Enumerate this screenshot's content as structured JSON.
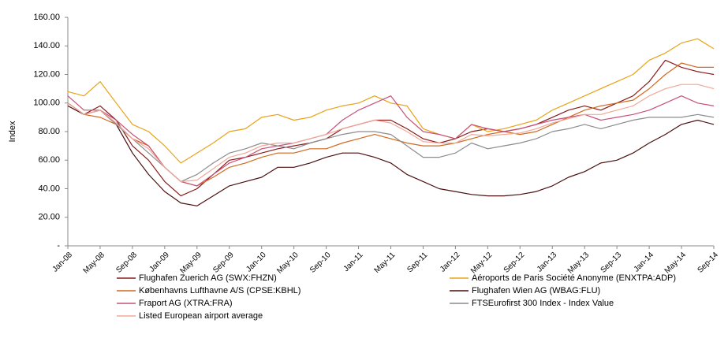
{
  "chart_data": {
    "type": "line",
    "y_label": "Index",
    "categories": [
      "Jan-08",
      null,
      "May-08",
      null,
      "Sep-08",
      null,
      "Jan-09",
      null,
      "May-09",
      null,
      "Sep-09",
      null,
      "Jan-10",
      null,
      "May-10",
      null,
      "Sep-10",
      null,
      "Jan-11",
      null,
      "May-11",
      null,
      "Sep-11",
      null,
      "Jan-12",
      null,
      "May-12",
      null,
      "Sep-12",
      null,
      "Jan-13",
      null,
      "May-13",
      null,
      "Sep-13",
      null,
      "Jan-14",
      null,
      "May-14",
      null,
      "Sep-14"
    ],
    "ylim": [
      0,
      160
    ],
    "yticks": [
      {
        "value": 0,
        "label": "-"
      },
      {
        "value": 20,
        "label": "20.00"
      },
      {
        "value": 40,
        "label": "40.00"
      },
      {
        "value": 60,
        "label": "60.00"
      },
      {
        "value": 80,
        "label": "80.00"
      },
      {
        "value": 100,
        "label": "100.00"
      },
      {
        "value": 120,
        "label": "120.00"
      },
      {
        "value": 140,
        "label": "140.00"
      },
      {
        "value": 160,
        "label": "160.00"
      }
    ],
    "grid": false,
    "legend": "bottom",
    "series": [
      {
        "name": "Flughafen Zuerich AG (SWX:FHZN)",
        "color": "#8b1a1a",
        "values": [
          100,
          92,
          98,
          88,
          70,
          60,
          45,
          35,
          40,
          50,
          60,
          62,
          65,
          68,
          70,
          72,
          75,
          82,
          85,
          88,
          88,
          82,
          75,
          72,
          75,
          80,
          82,
          80,
          82,
          85,
          90,
          95,
          98,
          95,
          100,
          105,
          115,
          130,
          125,
          122,
          120
        ]
      },
      {
        "name": "Aéroports de Paris Société Anonyme (ENXTPA:ADP)",
        "color": "#e8a317",
        "values": [
          108,
          105,
          115,
          100,
          85,
          80,
          70,
          58,
          65,
          72,
          80,
          82,
          90,
          92,
          88,
          90,
          95,
          98,
          100,
          105,
          100,
          98,
          82,
          78,
          75,
          85,
          80,
          82,
          85,
          88,
          95,
          100,
          105,
          110,
          115,
          120,
          130,
          135,
          142,
          145,
          138
        ]
      },
      {
        "name": "Københavns Lufthavne A/S (CPSE:KBHL)",
        "color": "#d2691e",
        "values": [
          100,
          92,
          90,
          85,
          75,
          70,
          55,
          45,
          42,
          48,
          55,
          58,
          62,
          65,
          65,
          68,
          68,
          72,
          75,
          78,
          75,
          72,
          70,
          70,
          72,
          75,
          78,
          80,
          78,
          80,
          85,
          90,
          95,
          98,
          100,
          102,
          110,
          120,
          128,
          125,
          125
        ]
      },
      {
        "name": "Flughafen Wien AG (WBAG:FLU)",
        "color": "#4a0f0f",
        "values": [
          98,
          92,
          95,
          85,
          65,
          50,
          38,
          30,
          28,
          35,
          42,
          45,
          48,
          55,
          55,
          58,
          62,
          65,
          65,
          62,
          58,
          50,
          45,
          40,
          38,
          36,
          35,
          35,
          36,
          38,
          42,
          48,
          52,
          58,
          60,
          65,
          72,
          78,
          85,
          88,
          85
        ]
      },
      {
        "name": "Fraport AG (XTRA:FRA)",
        "color": "#c8507a",
        "values": [
          105,
          95,
          95,
          88,
          78,
          70,
          55,
          45,
          42,
          50,
          58,
          62,
          68,
          70,
          72,
          75,
          78,
          88,
          95,
          100,
          105,
          90,
          80,
          78,
          75,
          85,
          82,
          80,
          82,
          85,
          88,
          90,
          92,
          88,
          90,
          92,
          95,
          100,
          105,
          100,
          98
        ]
      },
      {
        "name": "FTSEurofirst 300 Index - Index Value",
        "color": "#8c8c8c",
        "values": [
          100,
          92,
          95,
          85,
          75,
          65,
          55,
          45,
          50,
          58,
          65,
          68,
          72,
          70,
          68,
          72,
          75,
          78,
          80,
          80,
          78,
          70,
          62,
          62,
          65,
          72,
          68,
          70,
          72,
          75,
          80,
          82,
          85,
          82,
          85,
          88,
          90,
          90,
          90,
          92,
          90
        ]
      },
      {
        "name": "Listed European airport average",
        "color": "#f0a898",
        "values": [
          100,
          92,
          95,
          86,
          75,
          68,
          55,
          45,
          46,
          54,
          62,
          65,
          70,
          72,
          72,
          75,
          78,
          82,
          85,
          88,
          86,
          80,
          73,
          72,
          72,
          78,
          77,
          78,
          79,
          82,
          86,
          89,
          92,
          92,
          95,
          98,
          105,
          110,
          113,
          113,
          110
        ]
      }
    ]
  }
}
